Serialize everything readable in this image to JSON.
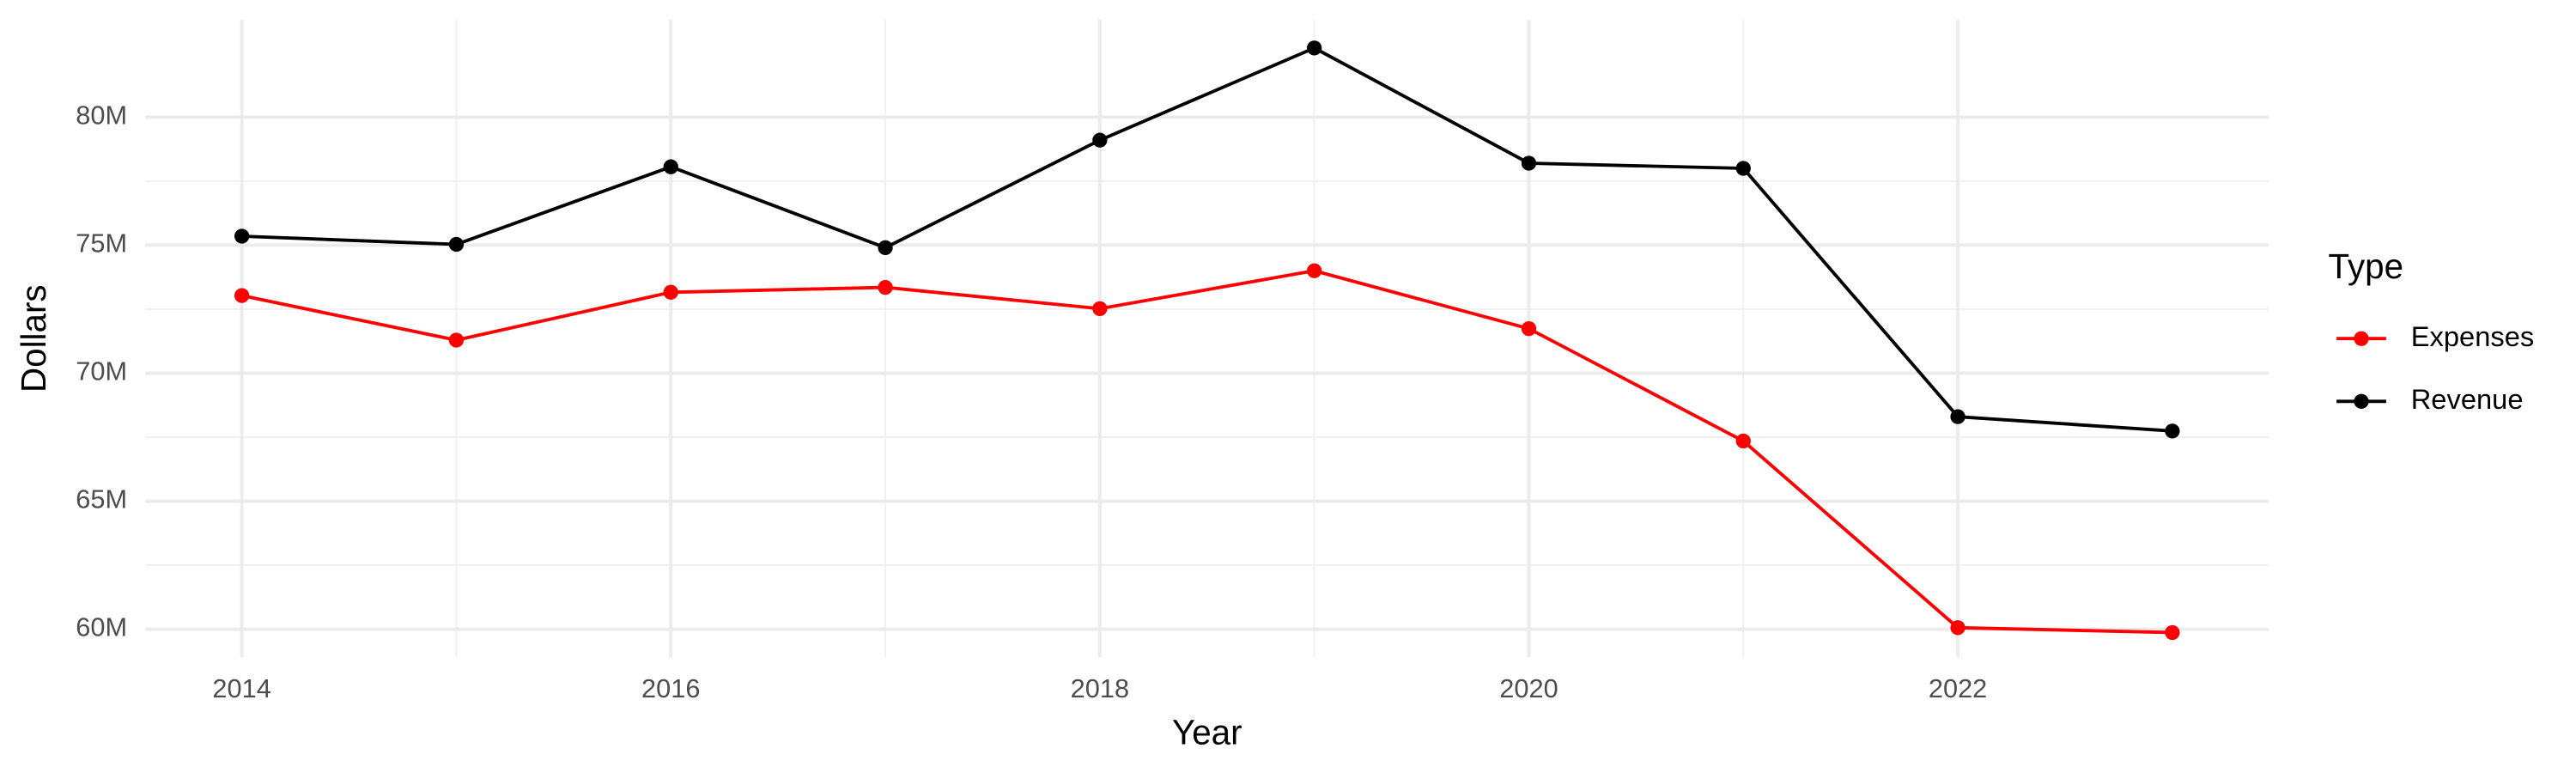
{
  "chart_data": {
    "type": "line",
    "x_label": "Year",
    "y_label": "Dollars",
    "legend_title": "Type",
    "legend_position": "right",
    "grid": true,
    "x": [
      2014,
      2015,
      2016,
      2017,
      2018,
      2019,
      2020,
      2021,
      2022,
      2023
    ],
    "series": [
      {
        "name": "Expenses",
        "color": "#ff0000",
        "values": [
          73030000,
          71290000,
          73160000,
          73350000,
          72520000,
          74000000,
          71740000,
          67350000,
          60060000,
          59870000
        ]
      },
      {
        "name": "Revenue",
        "color": "#000000",
        "values": [
          75350000,
          75030000,
          78060000,
          74900000,
          79100000,
          82700000,
          78200000,
          78000000,
          68300000,
          67740000
        ]
      }
    ],
    "xlim": [
      2013.55,
      2023.45
    ],
    "xticks": [
      2014,
      2016,
      2018,
      2020,
      2022
    ],
    "ylim": [
      58900000,
      83800000
    ],
    "yticks": [
      {
        "value": 60000000,
        "label": "60M"
      },
      {
        "value": 65000000,
        "label": "65M"
      },
      {
        "value": 70000000,
        "label": "70M"
      },
      {
        "value": 75000000,
        "label": "75M"
      },
      {
        "value": 80000000,
        "label": "80M"
      }
    ]
  }
}
